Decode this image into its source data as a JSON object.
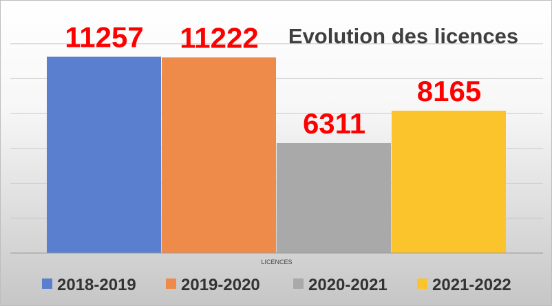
{
  "chart_data": {
    "type": "bar",
    "title": "Evolution des licences",
    "xlabel": "LICENCES",
    "ylabel": "",
    "categories": [
      "LICENCES"
    ],
    "series": [
      {
        "name": "2018-2019",
        "values": [
          11257
        ],
        "color": "#5b7fcf"
      },
      {
        "name": "2019-2020",
        "values": [
          11222
        ],
        "color": "#ee8b4b"
      },
      {
        "name": "2020-2021",
        "values": [
          6311
        ],
        "color": "#a9a9a9"
      },
      {
        "name": "2021-2022",
        "values": [
          8165
        ],
        "color": "#fbc42d"
      }
    ],
    "ylim": [
      0,
      14000
    ],
    "grid": true,
    "legend_position": "bottom",
    "data_label_color": "#ff0000"
  }
}
